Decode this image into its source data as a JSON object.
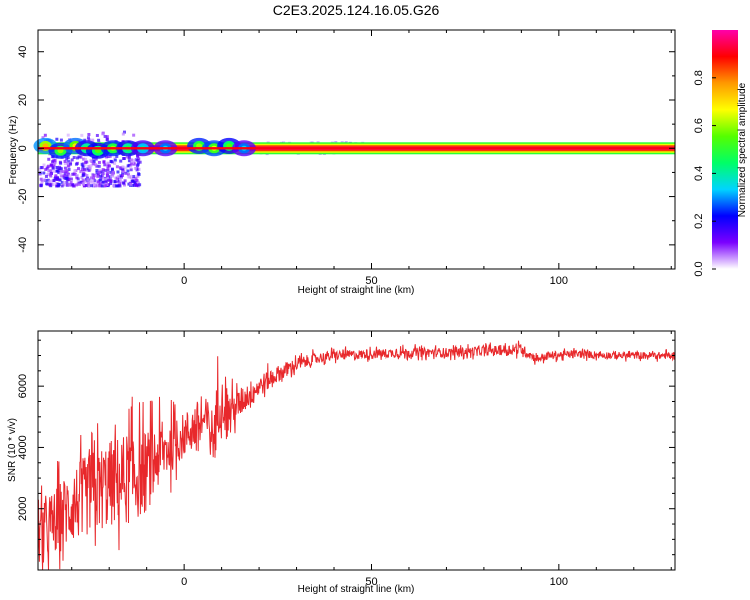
{
  "title": "C2E3.2025.124.16.05.G26",
  "chart_data": [
    {
      "type": "heatmap",
      "xlabel": "Height of straight line (km)",
      "ylabel": "Frequency (Hz)",
      "xlim": [
        -39,
        131
      ],
      "ylim": [
        -50,
        49
      ],
      "xticks": [
        0,
        50,
        100
      ],
      "yticks": [
        -40,
        -20,
        0,
        20,
        40
      ],
      "colorbar": {
        "label": "Normalized spectral amplitude",
        "ticks": [
          0.0,
          0.2,
          0.4,
          0.6,
          0.8
        ],
        "range": [
          0,
          1
        ],
        "colors": [
          "#ffffff",
          "#7b00ff",
          "#0000ff",
          "#00d4ff",
          "#00ff66",
          "#55ff00",
          "#ffff00",
          "#ff9900",
          "#ff0000",
          "#ff00aa"
        ]
      },
      "features": {
        "main_line_frequency": 0,
        "main_line_start": -39,
        "main_line_end": 131,
        "blobs": [
          {
            "x": -37,
            "f": 1,
            "amp": 0.75
          },
          {
            "x": -33,
            "f": -1,
            "amp": 0.6
          },
          {
            "x": -29,
            "f": 1,
            "amp": 0.7
          },
          {
            "x": -26,
            "f": 0,
            "amp": 0.5
          },
          {
            "x": -23,
            "f": -1,
            "amp": 0.55
          },
          {
            "x": -19,
            "f": 0,
            "amp": 0.6
          },
          {
            "x": -15,
            "f": 0,
            "amp": 0.5
          },
          {
            "x": -11,
            "f": 0,
            "amp": 0.4
          },
          {
            "x": -5,
            "f": 0,
            "amp": 0.35
          },
          {
            "x": 4,
            "f": 1,
            "amp": 0.6
          },
          {
            "x": 8,
            "f": 0,
            "amp": 0.65
          },
          {
            "x": 12,
            "f": 1,
            "amp": 0.55
          },
          {
            "x": 16,
            "f": 0,
            "amp": 0.35
          }
        ],
        "noise_region": {
          "x": [
            -39,
            -12
          ],
          "f": [
            -15,
            8
          ]
        }
      }
    },
    {
      "type": "line",
      "xlabel": "Height of straight line (km)",
      "ylabel": "SNR (10 * v/v)",
      "xlim": [
        -39,
        131
      ],
      "ylim": [
        0,
        7800
      ],
      "xticks": [
        0,
        50,
        100
      ],
      "yticks": [
        2000,
        4000,
        6000
      ],
      "series": [
        {
          "color": "#e8282b",
          "x": [
            -39,
            -35,
            -30,
            -25,
            -20,
            -15,
            -10,
            -8,
            -4,
            0,
            3,
            6,
            8,
            9,
            10,
            12,
            14,
            16,
            20,
            25,
            30,
            35,
            40,
            50,
            60,
            70,
            80,
            90,
            94,
            98,
            105,
            115,
            125,
            131
          ],
          "y": [
            1000,
            1500,
            2100,
            2500,
            2800,
            3000,
            3200,
            3600,
            4000,
            4400,
            4700,
            4900,
            4300,
            5400,
            5500,
            5200,
            5300,
            5600,
            6000,
            6400,
            6700,
            6900,
            7000,
            7050,
            7100,
            7100,
            7150,
            7200,
            6900,
            7000,
            7050,
            7000,
            7000,
            7000
          ],
          "spread": [
            1000,
            1200,
            1400,
            1500,
            1600,
            1700,
            1500,
            1300,
            1000,
            800,
            900,
            800,
            1000,
            1200,
            800,
            700,
            600,
            500,
            400,
            300,
            250,
            200,
            180,
            170,
            170,
            170,
            170,
            200,
            150,
            150,
            140,
            130,
            130,
            130
          ]
        }
      ]
    }
  ]
}
